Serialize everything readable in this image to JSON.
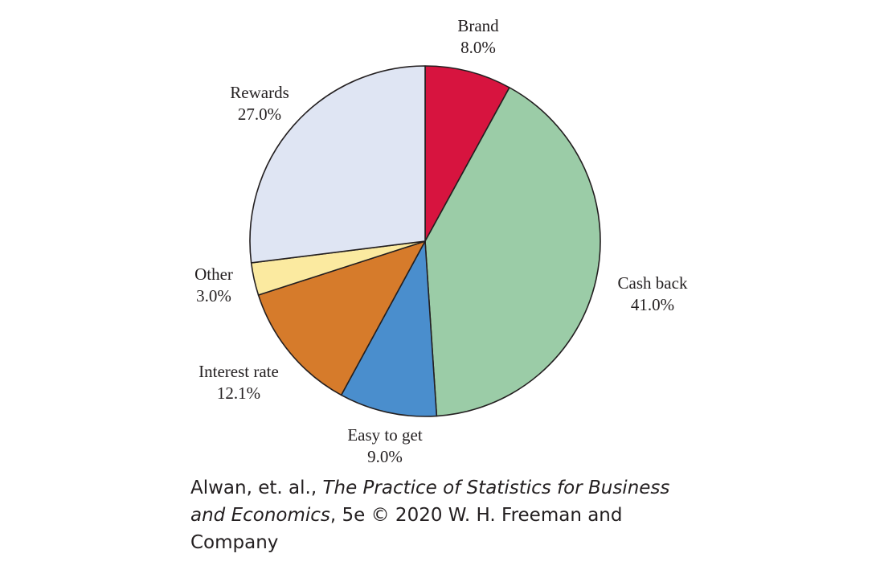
{
  "chart_data": {
    "type": "pie",
    "title": "",
    "start_angle_deg": 0,
    "direction": "clockwise",
    "slices": [
      {
        "label": "Brand",
        "value": 8.0,
        "value_label": "8.0%",
        "color": "#d7143f"
      },
      {
        "label": "Cash back",
        "value": 41.0,
        "value_label": "41.0%",
        "color": "#9bcca7"
      },
      {
        "label": "Easy to get",
        "value": 9.0,
        "value_label": "9.0%",
        "color": "#4a8ecd"
      },
      {
        "label": "Interest rate",
        "value": 12.1,
        "value_label": "12.1%",
        "color": "#d67b2b"
      },
      {
        "label": "Other",
        "value": 3.0,
        "value_label": "3.0%",
        "color": "#fbeaa0"
      },
      {
        "label": "Rewards",
        "value": 27.0,
        "value_label": "27.0%",
        "color": "#dfe5f3"
      }
    ]
  },
  "caption": {
    "authors": "Alwan, et. al., ",
    "book_title": "The Practice of Statistics for Business and Economics",
    "rest": ", 5e © 2020 W. H. Freeman and Company"
  }
}
